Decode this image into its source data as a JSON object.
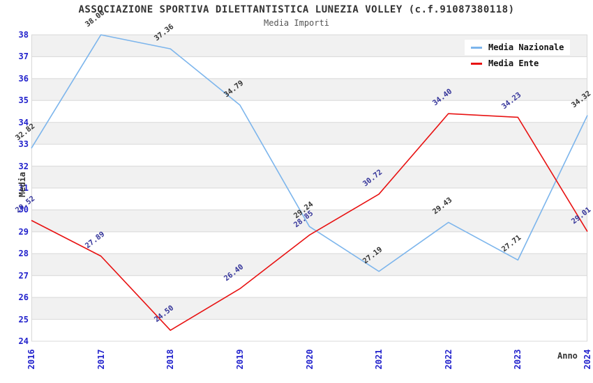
{
  "title": "ASSOCIAZIONE SPORTIVA DILETTANTISTICA LUNEZIA VOLLEY (c.f.91087380118)",
  "subtitle": "Media Importi",
  "axes": {
    "y_label": "Media",
    "x_label": "Anno",
    "y_ticks": [
      38,
      37,
      36,
      35,
      34,
      33,
      32,
      31,
      30,
      29,
      28,
      27,
      26,
      25,
      24
    ],
    "tick_color": "#2222cc"
  },
  "legend": {
    "items": [
      {
        "label": "Media Nazionale",
        "color": "#7cb5ec"
      },
      {
        "label": "Media Ente",
        "color": "#e81212"
      }
    ]
  },
  "chart_data": {
    "type": "line",
    "title": "ASSOCIAZIONE SPORTIVA DILETTANTISTICA LUNEZIA VOLLEY (c.f.91087380118)",
    "subtitle": "Media Importi",
    "xlabel": "Anno",
    "ylabel": "Media",
    "x": [
      "2016",
      "2017",
      "2018",
      "2019",
      "2020",
      "2021",
      "2022",
      "2023",
      "2024"
    ],
    "series": [
      {
        "name": "Media Nazionale",
        "color": "#7cb5ec",
        "label_color": "#333333",
        "values": [
          32.82,
          38.0,
          37.36,
          34.79,
          29.24,
          27.19,
          29.43,
          27.71,
          34.32
        ]
      },
      {
        "name": "Media Ente",
        "color": "#e81212",
        "label_color": "#333399",
        "values": [
          29.52,
          27.89,
          24.5,
          26.4,
          28.85,
          30.72,
          34.4,
          34.23,
          29.01
        ]
      }
    ],
    "ylim": [
      24,
      38
    ],
    "grid": true,
    "band_color": "#f1f1f1",
    "grid_color": "#d8d8d8",
    "legend_position": "top-right"
  }
}
